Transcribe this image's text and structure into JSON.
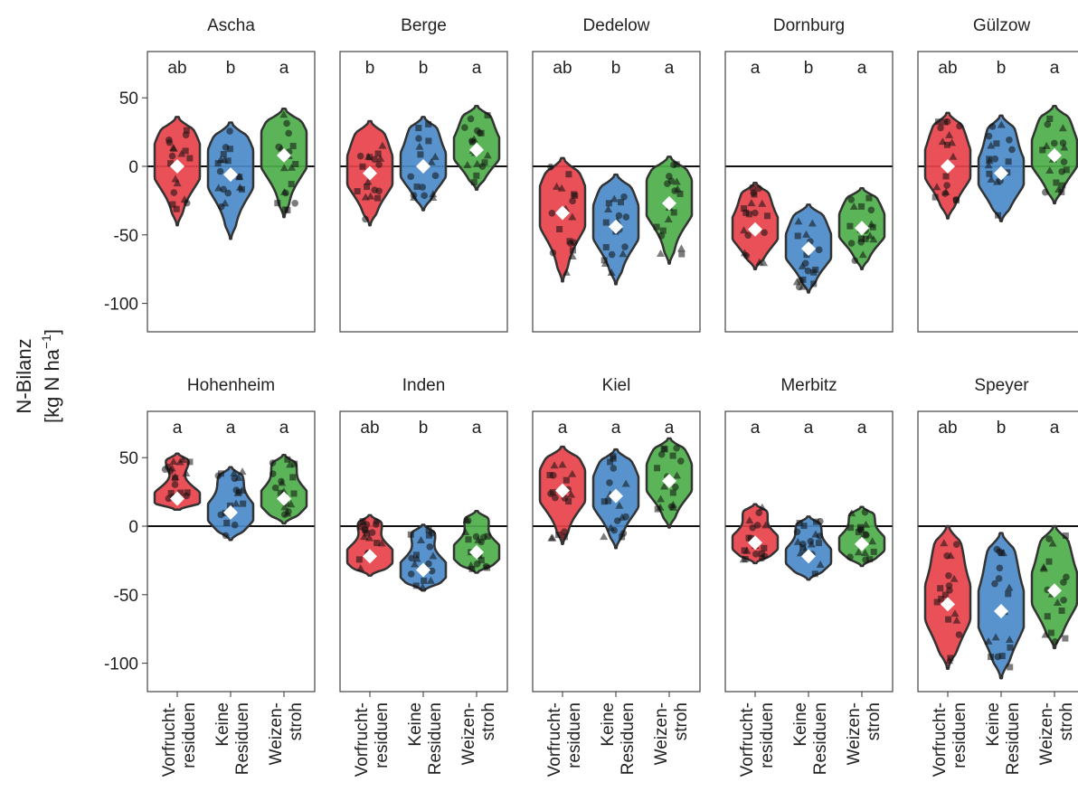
{
  "chart_data": {
    "type": "violin",
    "ylabel_lines": [
      "N-Bilanz",
      "[kg N ha",
      "−1",
      "]"
    ],
    "ylim": [
      -120,
      82
    ],
    "yticks": [
      50,
      0,
      -50,
      -100
    ],
    "ytick_labels": [
      "50",
      "0",
      "-50",
      "-100"
    ],
    "hline": 0,
    "grid": false,
    "legend": "none",
    "treatments": [
      {
        "key": "vorfrucht",
        "label_lines": [
          "Vorfrucht-",
          "residuen"
        ],
        "color": "#e8414a"
      },
      {
        "key": "keine",
        "label_lines": [
          "Keine",
          "Residuen"
        ],
        "color": "#4a8ac9"
      },
      {
        "key": "weizen",
        "label_lines": [
          "Weizen-",
          "stroh"
        ],
        "color": "#4daf4a"
      }
    ],
    "sites": [
      {
        "name": "Ascha",
        "letters": [
          "ab",
          "b",
          "a"
        ],
        "min": [
          -43,
          -53,
          -37
        ],
        "max": [
          36,
          32,
          42
        ],
        "mean": [
          0,
          -6,
          8
        ]
      },
      {
        "name": "Berge",
        "letters": [
          "b",
          "b",
          "a"
        ],
        "min": [
          -43,
          -32,
          -17
        ],
        "max": [
          33,
          36,
          44
        ],
        "mean": [
          -5,
          0,
          12
        ]
      },
      {
        "name": "Dedelow",
        "letters": [
          "ab",
          "b",
          "a"
        ],
        "min": [
          -84,
          -86,
          -71
        ],
        "max": [
          6,
          -6,
          7
        ],
        "mean": [
          -34,
          -44,
          -27
        ]
      },
      {
        "name": "Dornburg",
        "letters": [
          "a",
          "b",
          "a"
        ],
        "min": [
          -75,
          -92,
          -75
        ],
        "max": [
          -12,
          -28,
          -16
        ],
        "mean": [
          -46,
          -60,
          -45
        ]
      },
      {
        "name": "Gülzow",
        "letters": [
          "ab",
          "b",
          "a"
        ],
        "min": [
          -38,
          -40,
          -27
        ],
        "max": [
          39,
          37,
          44
        ],
        "mean": [
          0,
          -5,
          8
        ]
      },
      {
        "name": "Hohenheim",
        "letters": [
          "a",
          "a",
          "a"
        ],
        "min": [
          12,
          -10,
          2
        ],
        "max": [
          53,
          43,
          52
        ],
        "mean": [
          20,
          10,
          20
        ]
      },
      {
        "name": "Inden",
        "letters": [
          "ab",
          "b",
          "a"
        ],
        "min": [
          -36,
          -47,
          -34
        ],
        "max": [
          8,
          1,
          11
        ],
        "mean": [
          -22,
          -32,
          -19
        ]
      },
      {
        "name": "Kiel",
        "letters": [
          "a",
          "a",
          "a"
        ],
        "min": [
          -13,
          -16,
          -1
        ],
        "max": [
          58,
          56,
          64
        ],
        "mean": [
          26,
          22,
          33
        ]
      },
      {
        "name": "Merbitz",
        "letters": [
          "a",
          "a",
          "a"
        ],
        "min": [
          -27,
          -39,
          -29
        ],
        "max": [
          16,
          7,
          14
        ],
        "mean": [
          -12,
          -22,
          -13
        ]
      },
      {
        "name": "Speyer",
        "letters": [
          "ab",
          "b",
          "a"
        ],
        "min": [
          -104,
          -111,
          -89
        ],
        "max": [
          0,
          -5,
          0
        ],
        "mean": [
          -57,
          -62,
          -47
        ]
      }
    ]
  }
}
